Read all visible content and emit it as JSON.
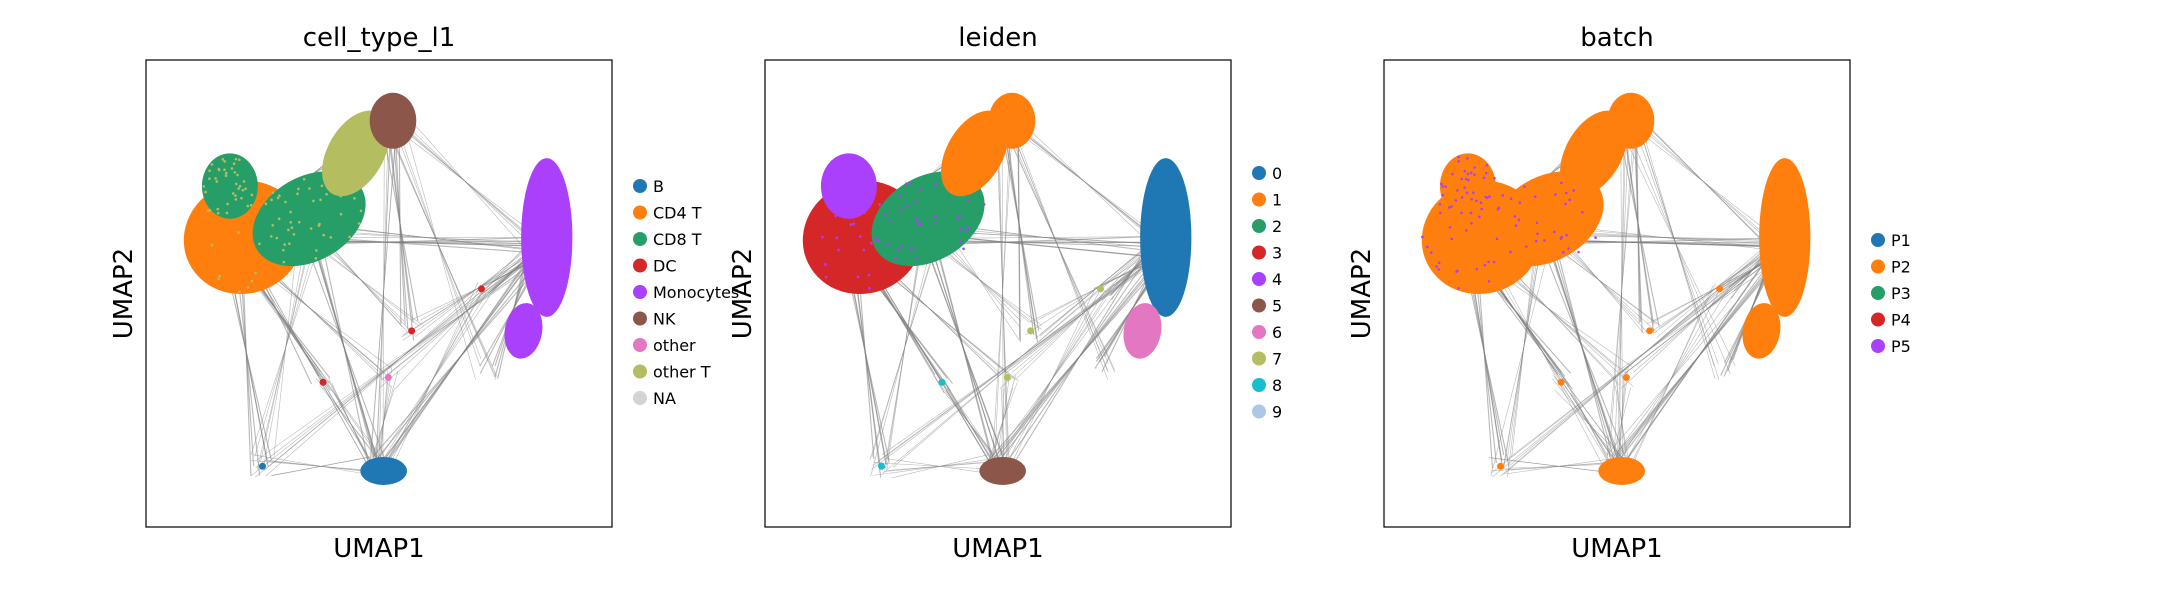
{
  "chart_data": [
    {
      "type": "scatter",
      "title": "cell_type_l1",
      "xlabel": "UMAP1",
      "ylabel": "UMAP2",
      "grid": false,
      "legend_position": "right",
      "legend": [
        {
          "label": "B",
          "color": "#1f77b4"
        },
        {
          "label": "CD4 T",
          "color": "#ff7f0e"
        },
        {
          "label": "CD8 T",
          "color": "#279e68"
        },
        {
          "label": "DC",
          "color": "#d62728"
        },
        {
          "label": "Monocytes",
          "color": "#aa40fc"
        },
        {
          "label": "NK",
          "color": "#8c564b"
        },
        {
          "label": "other",
          "color": "#e377c2"
        },
        {
          "label": "other T",
          "color": "#b5bd61"
        },
        {
          "label": "NA",
          "color": "#d3d3d3"
        }
      ]
    },
    {
      "type": "scatter",
      "title": "leiden",
      "xlabel": "UMAP1",
      "ylabel": "UMAP2",
      "grid": false,
      "legend_position": "right",
      "legend": [
        {
          "label": "0",
          "color": "#1f77b4"
        },
        {
          "label": "1",
          "color": "#ff7f0e"
        },
        {
          "label": "2",
          "color": "#279e68"
        },
        {
          "label": "3",
          "color": "#d62728"
        },
        {
          "label": "4",
          "color": "#aa40fc"
        },
        {
          "label": "5",
          "color": "#8c564b"
        },
        {
          "label": "6",
          "color": "#e377c2"
        },
        {
          "label": "7",
          "color": "#b5bd61"
        },
        {
          "label": "8",
          "color": "#17becf"
        },
        {
          "label": "9",
          "color": "#aec7e8"
        }
      ]
    },
    {
      "type": "scatter",
      "title": "batch",
      "xlabel": "UMAP1",
      "ylabel": "UMAP2",
      "grid": false,
      "legend_position": "right",
      "legend": [
        {
          "label": "P1",
          "color": "#1f77b4"
        },
        {
          "label": "P2",
          "color": "#ff7f0e"
        },
        {
          "label": "P3",
          "color": "#279e68"
        },
        {
          "label": "P4",
          "color": "#d62728"
        },
        {
          "label": "P5",
          "color": "#aa40fc"
        }
      ]
    }
  ]
}
